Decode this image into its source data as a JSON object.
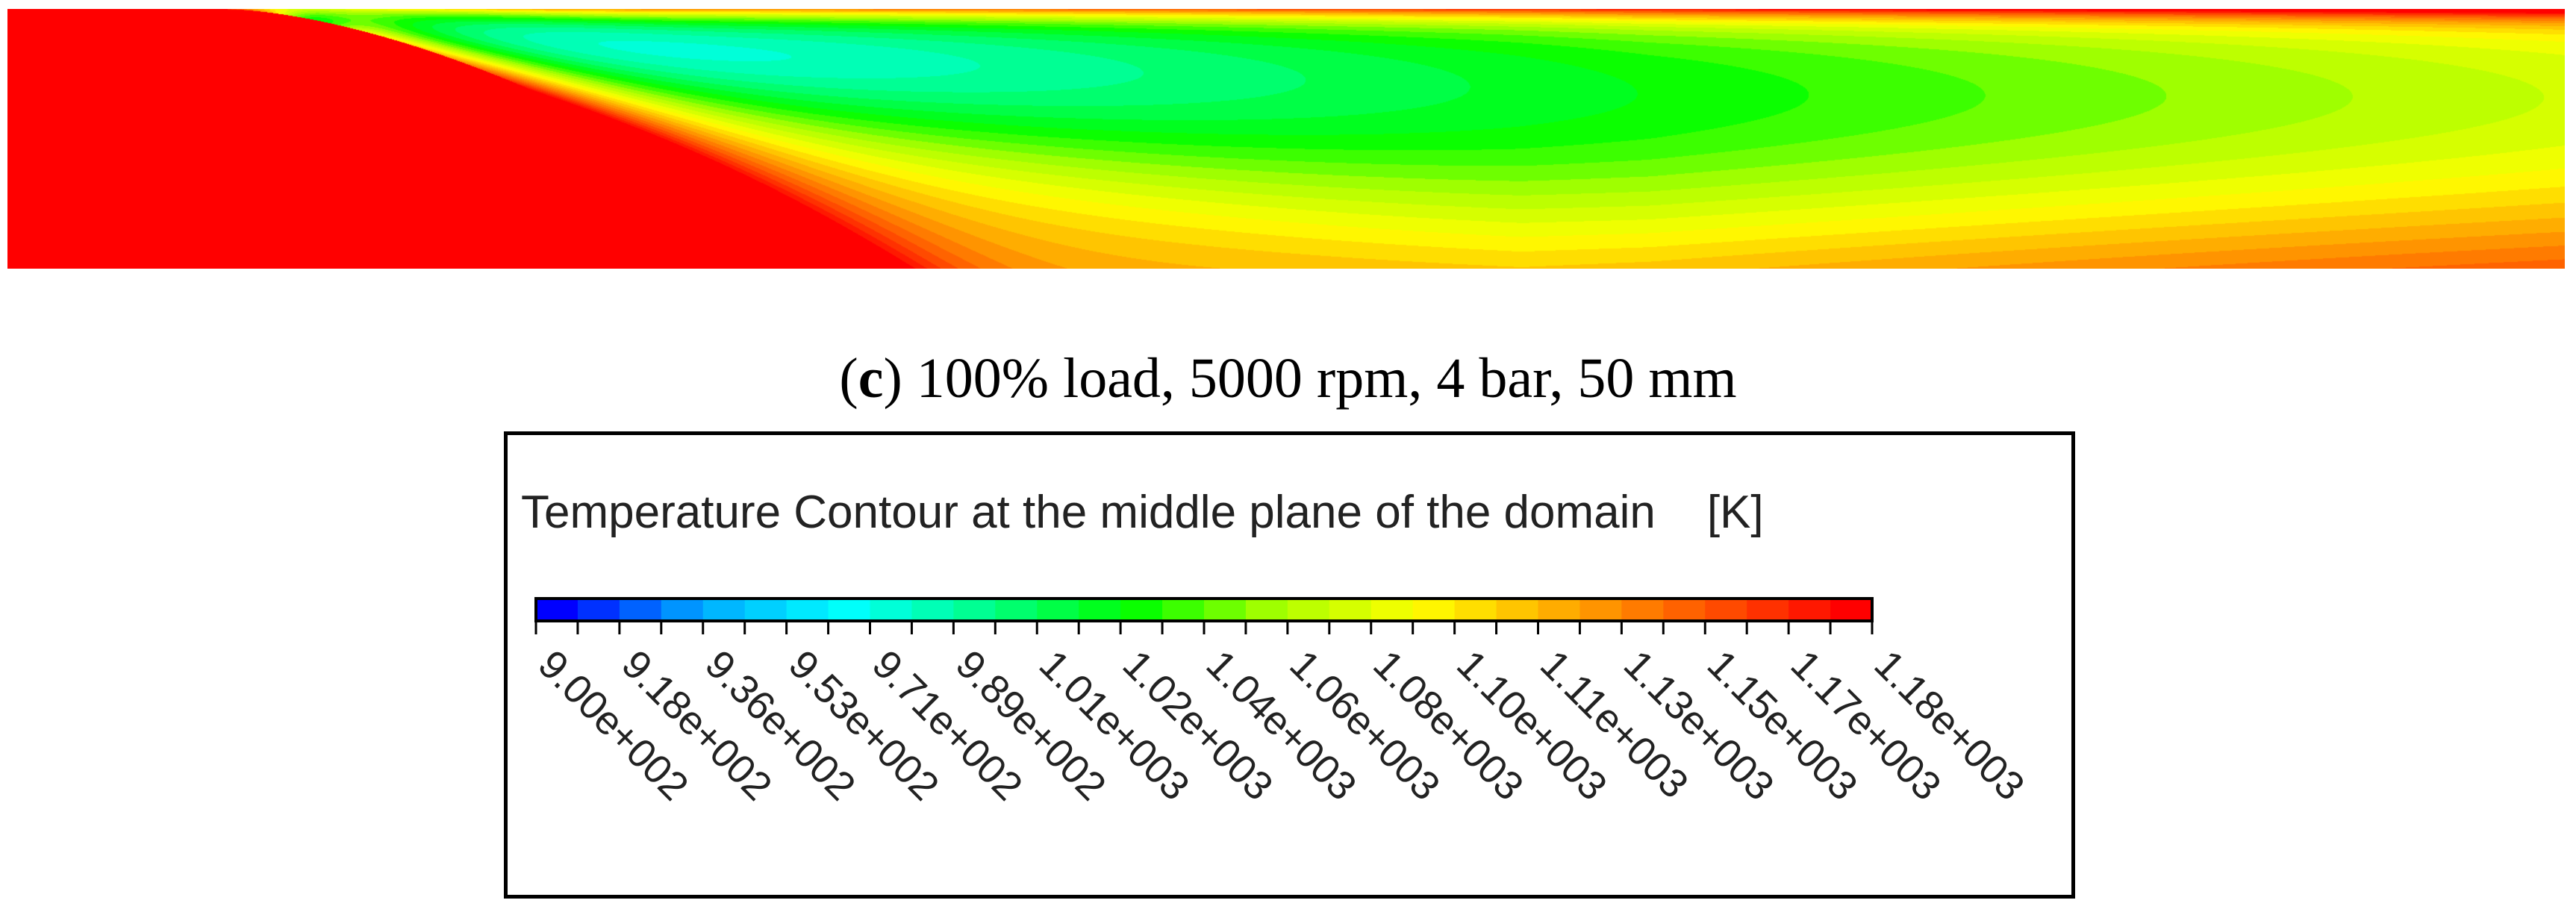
{
  "caption": {
    "letter": "c",
    "text": "100% load, 5000 rpm, 4 bar, 50 mm"
  },
  "legend": {
    "title": "Temperature Contour at the middle plane of the domain",
    "unit": "[K]",
    "tick_labels": [
      "9.00e+002",
      "9.18e+002",
      "9.36e+002",
      "9.53e+002",
      "9.71e+002",
      "9.89e+002",
      "1.01e+003",
      "1.02e+003",
      "1.04e+003",
      "1.06e+003",
      "1.08e+003",
      "1.10e+003",
      "1.11e+003",
      "1.13e+003",
      "1.15e+003",
      "1.17e+003",
      "1.18e+003"
    ],
    "range": [
      900,
      1180
    ],
    "colormap": [
      "#0000ff",
      "#00aaff",
      "#00ffff",
      "#00ff88",
      "#00ff00",
      "#aaff00",
      "#ffff00",
      "#ffaa00",
      "#ff5500",
      "#ff0000"
    ],
    "levels": 32
  },
  "chart_data": {
    "type": "heatmap",
    "quantity": "Temperature",
    "unit": "K",
    "range": [
      900,
      1180
    ],
    "colormap": "rainbow (blue → cyan → green → yellow → red)",
    "min_region": "small cold core near upper-left inlet (~900 K)",
    "max_region": "inlet block on left and upper wall (~1180 K)"
  }
}
